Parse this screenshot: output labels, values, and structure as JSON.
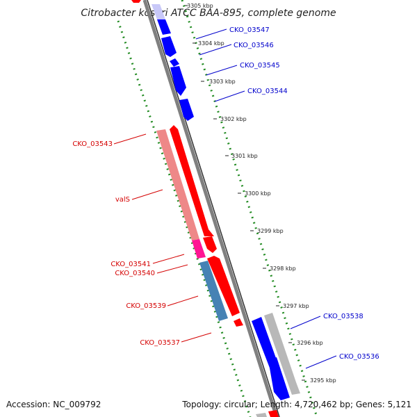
{
  "title": "Citrobacter koseri ATCC BAA-895, complete genome",
  "footer": {
    "accession": "Accession: NC_009792",
    "summary": "Topology: circular; Length: 4,720,462 bp; Genes: 5,121"
  },
  "colors": {
    "forward_gene": "#ff0000",
    "reverse_gene": "#0000ff",
    "trna_light": "#ee8888",
    "pink_gene": "#ff1493",
    "steelblue_gene": "#4682b4",
    "gray_gene": "#b8b8b8",
    "backbone": "#808080",
    "gc_dots": "#228b22"
  },
  "ticks": [
    "3305 kbp",
    "3304 kbp",
    "3303 kbp",
    "3302 kbp",
    "3301 kbp",
    "3300 kbp",
    "3299 kbp",
    "3298 kbp",
    "3297 kbp",
    "3296 kbp",
    "3295 kbp"
  ],
  "labels_right": [
    "CKO_03547",
    "CKO_03546",
    "CKO_03545",
    "CKO_03544",
    "CKO_03538",
    "CKO_03536"
  ],
  "labels_left": [
    "CKO_03543",
    "valS",
    "CKO_03541",
    "CKO_03540",
    "CKO_03539",
    "CKO_03537"
  ]
}
